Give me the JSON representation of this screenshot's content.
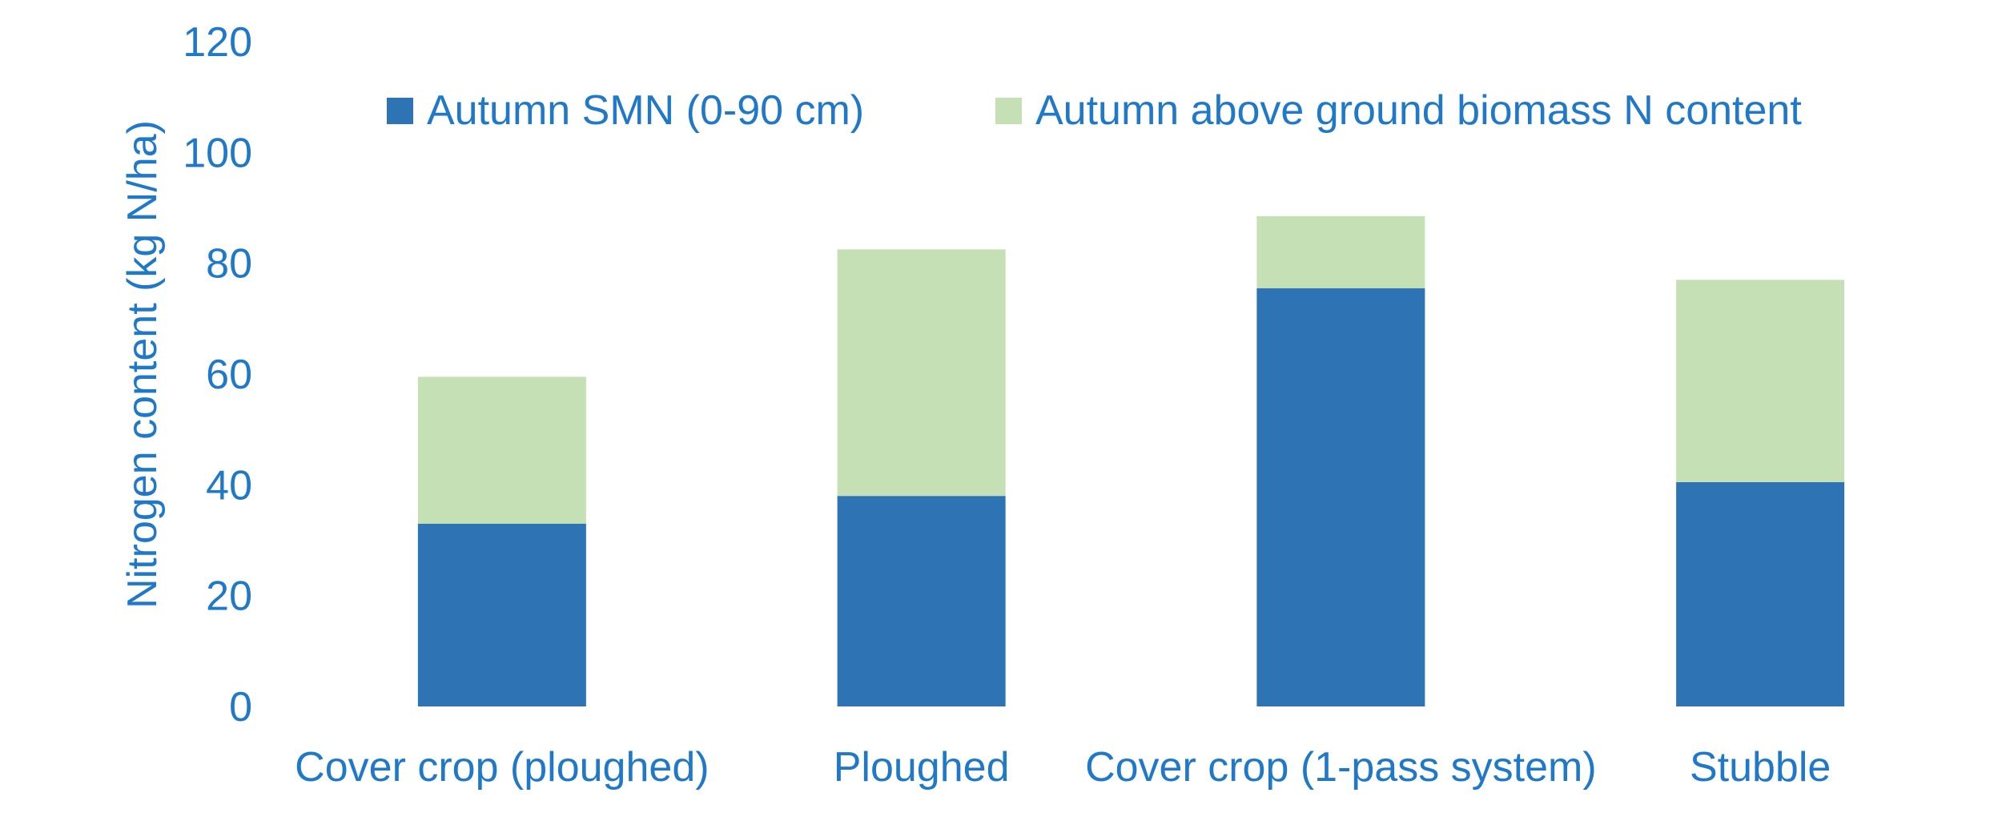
{
  "chart_data": {
    "type": "bar",
    "stacked": true,
    "categories": [
      "Cover crop (ploughed)",
      "Ploughed",
      "Cover crop (1-pass system)",
      "Stubble"
    ],
    "series": [
      {
        "name": "Autumn SMN (0-90 cm)",
        "values": [
          33,
          38,
          75.5,
          40.5
        ],
        "color": "#2E74B5"
      },
      {
        "name": "Autumn above ground biomass N content",
        "values": [
          26.5,
          44.5,
          13,
          36.5
        ],
        "color": "#C5E0B4"
      }
    ],
    "ylabel": "Nitrogen content (kg N/ha)",
    "xlabel": "",
    "ylim": [
      0,
      120
    ],
    "yticks": [
      0,
      20,
      40,
      60,
      80,
      100,
      120
    ],
    "grid": false,
    "legend_position": "top",
    "text_color": "#1F78C8"
  }
}
